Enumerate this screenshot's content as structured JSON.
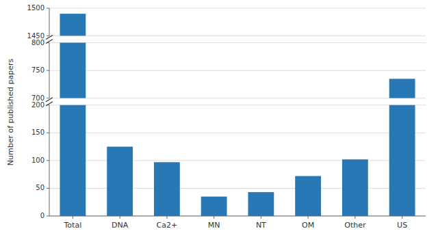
{
  "chart_data": {
    "type": "bar",
    "ylabel": "Number of published papers",
    "categories": [
      "Total",
      "DNA",
      "Ca2+",
      "MN",
      "NT",
      "OM",
      "Other",
      "US"
    ],
    "values": [
      1490,
      125,
      97,
      35,
      43,
      72,
      102,
      735
    ],
    "color": "#2878B5",
    "grid": true,
    "segments": [
      {
        "ylim": [
          1450,
          1500
        ],
        "yticks": [
          1450,
          1500
        ]
      },
      {
        "ylim": [
          700,
          800
        ],
        "yticks": [
          700,
          750,
          800
        ]
      },
      {
        "ylim": [
          0,
          200
        ],
        "yticks": [
          0,
          50,
          100,
          150,
          200
        ]
      }
    ]
  }
}
